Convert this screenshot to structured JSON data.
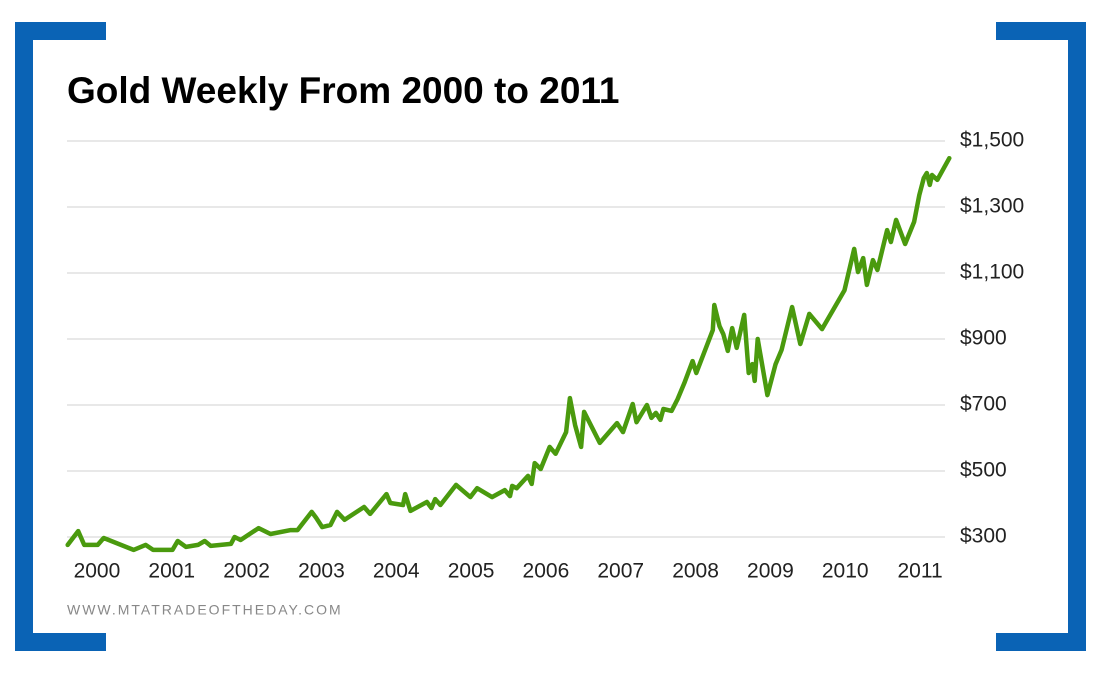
{
  "chart_data": {
    "type": "line",
    "title": "Gold Weekly From 2000 to 2011",
    "source": "WWW.MTATRADEOFTHEDAY.COM",
    "x": [
      1999.61,
      1999.75,
      1999.83,
      2000.01,
      2000.09,
      2000.49,
      2000.65,
      2000.75,
      2001.01,
      2001.08,
      2001.19,
      2001.35,
      2001.44,
      2001.52,
      2001.79,
      2001.84,
      2001.92,
      2002.16,
      2002.32,
      2002.59,
      2002.68,
      2002.87,
      2002.93,
      2003.01,
      2003.12,
      2003.21,
      2003.31,
      2003.57,
      2003.65,
      2003.87,
      2003.92,
      2004.09,
      2004.12,
      2004.19,
      2004.41,
      2004.47,
      2004.52,
      2004.59,
      2004.8,
      2004.99,
      2005.08,
      2005.28,
      2005.45,
      2005.52,
      2005.55,
      2005.61,
      2005.76,
      2005.81,
      2005.85,
      2005.93,
      2006.05,
      2006.13,
      2006.27,
      2006.32,
      2006.39,
      2006.47,
      2006.51,
      2006.72,
      2006.95,
      2007.03,
      2007.16,
      2007.21,
      2007.35,
      2007.41,
      2007.47,
      2007.53,
      2007.57,
      2007.68,
      2007.76,
      2007.85,
      2007.96,
      2008.01,
      2008.23,
      2008.25,
      2008.32,
      2008.37,
      2008.43,
      2008.49,
      2008.55,
      2008.65,
      2008.71,
      2008.76,
      2008.79,
      2008.83,
      2008.96,
      2009.07,
      2009.15,
      2009.29,
      2009.4,
      2009.52,
      2009.69,
      2009.99,
      2010.12,
      2010.17,
      2010.24,
      2010.29,
      2010.37,
      2010.43,
      2010.56,
      2010.61,
      2010.68,
      2010.8,
      2010.92,
      2010.99,
      2011.05,
      2011.09,
      2011.13,
      2011.16,
      2011.23,
      2011.39
    ],
    "series": [
      {
        "name": "Gold",
        "color": "#4a9a0e",
        "values": [
          276,
          318,
          276,
          276,
          297,
          261,
          276,
          261,
          261,
          288,
          270,
          276,
          288,
          273,
          279,
          300,
          291,
          327,
          309,
          321,
          321,
          376,
          358,
          330,
          336,
          376,
          352,
          391,
          370,
          430,
          403,
          397,
          430,
          379,
          406,
          388,
          415,
          397,
          458,
          421,
          448,
          421,
          442,
          424,
          455,
          448,
          485,
          461,
          524,
          506,
          573,
          552,
          618,
          721,
          639,
          573,
          679,
          585,
          645,
          618,
          703,
          648,
          700,
          661,
          676,
          655,
          688,
          682,
          718,
          767,
          833,
          797,
          927,
          1003,
          939,
          915,
          864,
          933,
          873,
          973,
          797,
          824,
          773,
          900,
          730,
          824,
          867,
          997,
          885,
          976,
          930,
          1048,
          1173,
          1103,
          1145,
          1064,
          1139,
          1109,
          1230,
          1194,
          1261,
          1188,
          1255,
          1336,
          1388,
          1403,
          1367,
          1397,
          1382,
          1448
        ]
      }
    ],
    "xlim": [
      1999.6,
      2011.4
    ],
    "xticks": [
      2000,
      2001,
      2002,
      2003,
      2004,
      2005,
      2006,
      2007,
      2008,
      2009,
      2010,
      2011
    ],
    "ylim": [
      300,
      1500
    ],
    "yticks": [
      {
        "value": 300,
        "label": "$300"
      },
      {
        "value": 500,
        "label": "$500"
      },
      {
        "value": 700,
        "label": "$700"
      },
      {
        "value": 900,
        "label": "$900"
      },
      {
        "value": 1100,
        "label": "$1,100"
      },
      {
        "value": 1300,
        "label": "$1,300"
      },
      {
        "value": 1500,
        "label": "$1,500"
      }
    ],
    "grid": true
  }
}
